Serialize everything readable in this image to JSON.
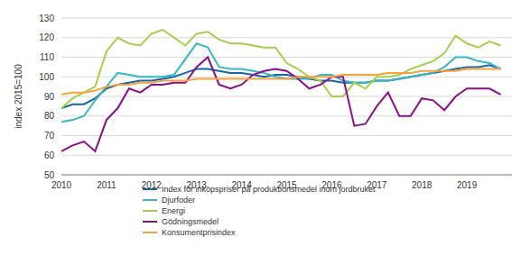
{
  "chart_data": {
    "type": "line",
    "y_label": "index 2015=100",
    "x": [
      2010.0,
      2010.25,
      2010.5,
      2010.75,
      2011.0,
      2011.25,
      2011.5,
      2011.75,
      2012.0,
      2012.25,
      2012.5,
      2012.75,
      2013.0,
      2013.25,
      2013.5,
      2013.75,
      2014.0,
      2014.25,
      2014.5,
      2014.75,
      2015.0,
      2015.25,
      2015.5,
      2015.75,
      2016.0,
      2016.25,
      2016.5,
      2016.75,
      2017.0,
      2017.25,
      2017.5,
      2017.75,
      2018.0,
      2018.25,
      2018.5,
      2018.75,
      2019.0,
      2019.25,
      2019.5,
      2019.75
    ],
    "series": [
      {
        "name": "Index för inköpspriser på produktionsmedel inom jordbruket",
        "color": "#1764a6",
        "values": [
          84,
          86,
          86,
          89,
          94,
          96,
          97,
          98,
          98,
          99,
          100,
          102,
          104,
          104,
          103,
          102,
          102,
          101,
          100,
          101,
          101,
          100,
          99,
          98,
          98,
          97,
          97,
          97,
          98,
          98,
          99,
          100,
          101,
          102,
          103,
          104,
          105,
          105,
          106,
          104
        ]
      },
      {
        "name": "Djurfoder",
        "color": "#35b8c4",
        "values": [
          77,
          78,
          80,
          88,
          95,
          102,
          101,
          100,
          100,
          100,
          101,
          109,
          117,
          115,
          105,
          104,
          104,
          103,
          102,
          100,
          99,
          99,
          99,
          101,
          101,
          98,
          97,
          97,
          98,
          98,
          99,
          100,
          101,
          102,
          105,
          110,
          110,
          108,
          107,
          104
        ]
      },
      {
        "name": "Energi",
        "color": "#a6cf49",
        "values": [
          84,
          89,
          92,
          95,
          113,
          120,
          117,
          116,
          122,
          124,
          120,
          116,
          122,
          123,
          119,
          117,
          117,
          116,
          115,
          115,
          107,
          104,
          100,
          98,
          90,
          90,
          97,
          94,
          100,
          100,
          101,
          104,
          106,
          108,
          112,
          121,
          117,
          115,
          118,
          116
        ]
      },
      {
        "name": "Gödningsmedel",
        "color": "#8d0d8a",
        "values": [
          62,
          65,
          67,
          62,
          78,
          84,
          94,
          92,
          96,
          96,
          97,
          97,
          105,
          110,
          96,
          94,
          96,
          101,
          103,
          104,
          103,
          99,
          94,
          96,
          100,
          100,
          75,
          76,
          85,
          92,
          80,
          80,
          89,
          88,
          83,
          90,
          94,
          94,
          94,
          91
        ]
      },
      {
        "name": "Konsumentprisindex",
        "color": "#f5a23c",
        "values": [
          91,
          92,
          92,
          93,
          95,
          96,
          96,
          97,
          97,
          98,
          98,
          98,
          99,
          99,
          99,
          99,
          99,
          99,
          99,
          99,
          99,
          100,
          100,
          100,
          100,
          101,
          101,
          101,
          101,
          102,
          102,
          102,
          103,
          103,
          103,
          103,
          104,
          104,
          104,
          104
        ]
      }
    ],
    "xlim": [
      2010,
      2020
    ],
    "xticks": [
      2010,
      2011,
      2012,
      2013,
      2014,
      2015,
      2016,
      2017,
      2018,
      2019
    ],
    "ylim": [
      50,
      130
    ],
    "yticks": [
      50,
      60,
      70,
      80,
      90,
      100,
      110,
      120,
      130
    ],
    "grid": true,
    "legend": "bottom"
  }
}
